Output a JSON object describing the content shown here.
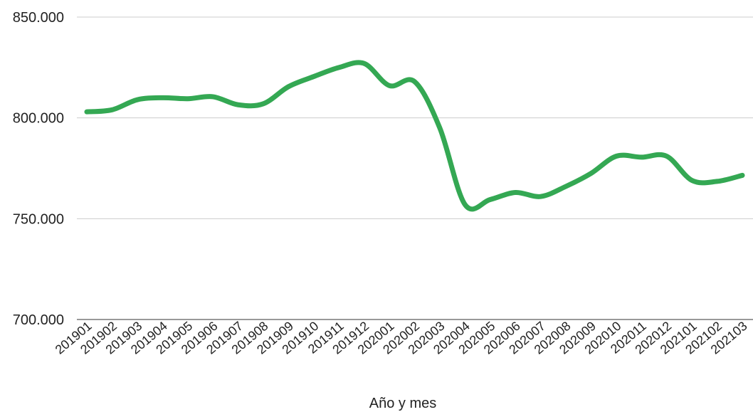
{
  "chart_data": {
    "type": "line",
    "title": "",
    "xlabel": "Año y mes",
    "ylabel": "",
    "ylim": [
      700000,
      850000
    ],
    "yticks": [
      700000,
      750000,
      800000,
      850000
    ],
    "ytick_labels": [
      "700.000",
      "750.000",
      "800.000",
      "850.000"
    ],
    "grid": true,
    "legend": "none",
    "categories": [
      "201901",
      "201902",
      "201903",
      "201904",
      "201905",
      "201906",
      "201907",
      "201908",
      "201909",
      "201910",
      "201911",
      "201912",
      "202001",
      "202002",
      "202003",
      "202004",
      "202005",
      "202006",
      "202007",
      "202008",
      "202009",
      "202010",
      "202011",
      "202012",
      "202101",
      "202102",
      "202103"
    ],
    "series": [
      {
        "color": "#34a853",
        "values": [
          803000,
          804000,
          809000,
          810000,
          809500,
          810500,
          806500,
          807000,
          815500,
          820500,
          825000,
          827000,
          816000,
          818000,
          795000,
          757000,
          759500,
          763000,
          761000,
          766000,
          772500,
          781000,
          780500,
          781000,
          769000,
          768500,
          771500
        ]
      }
    ]
  }
}
